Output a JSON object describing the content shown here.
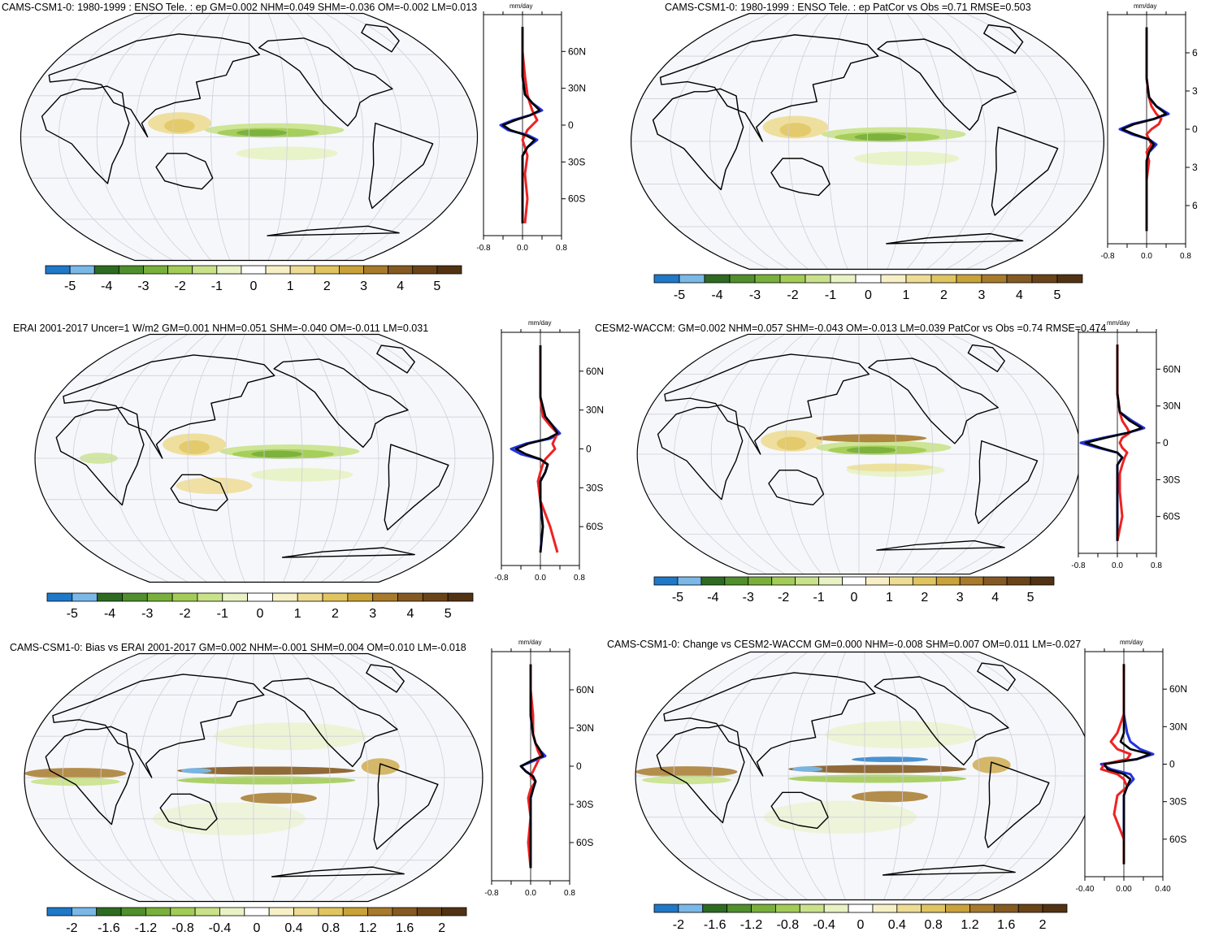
{
  "units": "mm/day",
  "panels": [
    {
      "id": "p1",
      "title": "CAMS-CSM1-0: 1980-1999 : ENSO Tele. : ep GM=0.002 NHM=0.049 SHM=-0.036 OM=-0.002 LM=0.013",
      "lat_labels": [
        "60N",
        "30N",
        "0",
        "30S",
        "60S"
      ],
      "x_ticks": [
        "-0.8",
        "0.0",
        "0.8"
      ],
      "colorbar_labels": [
        "-5",
        "-4",
        "-3",
        "-2",
        "-1",
        "0",
        "1",
        "2",
        "3",
        "4",
        "5"
      ]
    },
    {
      "id": "p2",
      "title": "CAMS-CSM1-0: 1980-1999 : ENSO Tele. : ep PatCor vs Obs =0.71 RMSE=0.503",
      "lat_labels": [
        "6",
        "3",
        "0",
        "3",
        "6"
      ],
      "x_ticks": [
        "-0.8",
        "0.0",
        "0.8"
      ],
      "colorbar_labels": [
        "-5",
        "-4",
        "-3",
        "-2",
        "-1",
        "0",
        "1",
        "2",
        "3",
        "4",
        "5"
      ]
    },
    {
      "id": "p3",
      "title": "ERAI 2001-2017 Uncer=1 W/m2 GM=0.001 NHM=0.051 SHM=-0.040 OM=-0.011 LM=0.031",
      "lat_labels": [
        "60N",
        "30N",
        "0",
        "30S",
        "60S"
      ],
      "x_ticks": [
        "-0.8",
        "0.0",
        "0.8"
      ],
      "colorbar_labels": [
        "-5",
        "-4",
        "-3",
        "-2",
        "-1",
        "0",
        "1",
        "2",
        "3",
        "4",
        "5"
      ]
    },
    {
      "id": "p4",
      "title": "CESM2-WACCM: GM=0.002 NHM=0.057 SHM=-0.043 OM=-0.013 LM=0.039 PatCor vs Obs =0.74 RMSE=0.474",
      "lat_labels": [
        "60N",
        "30N",
        "0",
        "30S",
        "60S"
      ],
      "x_ticks": [
        "-0.8",
        "0.0",
        "0.8"
      ],
      "colorbar_labels": [
        "-5",
        "-4",
        "-3",
        "-2",
        "-1",
        "0",
        "1",
        "2",
        "3",
        "4",
        "5"
      ]
    },
    {
      "id": "p5",
      "title": "CAMS-CSM1-0: Bias vs ERAI 2001-2017 GM=0.002 NHM=-0.001 SHM=0.004 OM=0.010 LM=-0.018",
      "lat_labels": [
        "60N",
        "30N",
        "0",
        "30S",
        "60S"
      ],
      "x_ticks": [
        "-0.8",
        "0.0",
        "0.8"
      ],
      "colorbar_labels": [
        "-2",
        "-1.6",
        "-1.2",
        "-0.8",
        "-0.4",
        "0",
        "0.4",
        "0.8",
        "1.2",
        "1.6",
        "2"
      ]
    },
    {
      "id": "p6",
      "title": "CAMS-CSM1-0: Change vs CESM2-WACCM GM=0.000 NHM=-0.008 SHM=0.007 OM=0.011 LM=-0.027",
      "lat_labels": [
        "60N",
        "30N",
        "0",
        "30S",
        "60S"
      ],
      "x_ticks": [
        "-0.40",
        "0.00",
        "0.40"
      ],
      "colorbar_labels": [
        "-2",
        "-1.6",
        "-1.2",
        "-0.8",
        "-0.4",
        "0",
        "0.4",
        "0.8",
        "1.2",
        "1.6",
        "2"
      ]
    }
  ],
  "colorbar_colors": [
    "#1f78c8",
    "#7ab8e8",
    "#2e6b22",
    "#4f8f2c",
    "#79b03c",
    "#a3cc57",
    "#c9e28a",
    "#e8f2c4",
    "#ffffff",
    "#f7f0c6",
    "#eedc94",
    "#e0c460",
    "#c9a23a",
    "#a77a2c",
    "#855a22",
    "#6a4418",
    "#523212"
  ],
  "chart_data": [
    {
      "type": "heatmap",
      "title": "CAMS-CSM1-0: 1980-1999 : ENSO Tele. : ep GM=0.002 NHM=0.049 SHM=-0.036 OM=-0.002 LM=0.013",
      "colorbar_ticks": [
        -5,
        -4,
        -3,
        -2,
        -1,
        0,
        1,
        2,
        3,
        4,
        5
      ],
      "profile": {
        "xlabel": "mm/day",
        "xlim": [
          -0.8,
          0.8
        ],
        "ylim": [
          -90,
          90
        ],
        "ylabels": [
          "60N",
          "30N",
          "0",
          "30S",
          "60S"
        ],
        "lat": [
          80,
          60,
          40,
          25,
          18,
          12,
          8,
          4,
          0,
          -4,
          -8,
          -12,
          -18,
          -25,
          -40,
          -60,
          -80
        ],
        "series": [
          {
            "color": "#2233dd",
            "values": [
              0,
              0,
              0,
              0.05,
              0.2,
              0.4,
              0.15,
              -0.2,
              -0.45,
              -0.3,
              0.1,
              0.3,
              0.1,
              0,
              0,
              0,
              0
            ]
          },
          {
            "color": "#ee2222",
            "values": [
              0,
              0,
              0.05,
              0.1,
              0.15,
              0.2,
              0.25,
              0.3,
              0.2,
              0.1,
              0.05,
              0.0,
              0.05,
              0.1,
              0.05,
              0.1,
              0.05
            ]
          },
          {
            "color": "#000000",
            "values": [
              0,
              0,
              0,
              0.05,
              0.2,
              0.35,
              0.15,
              -0.15,
              -0.4,
              -0.25,
              0.05,
              0.25,
              0.1,
              0,
              0,
              0,
              0
            ]
          }
        ]
      }
    },
    {
      "type": "heatmap",
      "title": "CAMS-CSM1-0: 1980-1999 : ENSO Tele. : ep PatCor vs Obs =0.71 RMSE=0.503",
      "colorbar_ticks": [
        -5,
        -4,
        -3,
        -2,
        -1,
        0,
        1,
        2,
        3,
        4,
        5
      ],
      "profile": {
        "xlabel": "mm/day",
        "xlim": [
          -0.8,
          0.8
        ],
        "ylim": [
          -90,
          90
        ],
        "ylabels": [
          "6",
          "3",
          "0",
          "3",
          "6"
        ],
        "lat": [
          80,
          60,
          40,
          25,
          18,
          12,
          8,
          4,
          0,
          -4,
          -8,
          -12,
          -18,
          -25,
          -40,
          -60,
          -80
        ],
        "series": [
          {
            "color": "#2233dd",
            "values": [
              0,
              0,
              0,
              0.05,
              0.2,
              0.45,
              0.15,
              -0.3,
              -0.55,
              -0.3,
              0.05,
              0.2,
              0.05,
              0,
              0,
              0,
              0
            ]
          },
          {
            "color": "#ee2222",
            "values": [
              0,
              0,
              0,
              0.05,
              0.1,
              0.2,
              0.3,
              0.25,
              0.1,
              0.0,
              0.05,
              0.1,
              0.0,
              0.05,
              0.0,
              0.0,
              0.0
            ]
          },
          {
            "color": "#000000",
            "values": [
              0,
              0,
              0,
              0.05,
              0.2,
              0.4,
              0.15,
              -0.25,
              -0.5,
              -0.25,
              0.05,
              0.15,
              0.05,
              0,
              0,
              0,
              0
            ]
          }
        ]
      }
    },
    {
      "type": "heatmap",
      "title": "ERAI 2001-2017 Uncer=1 W/m2 GM=0.001 NHM=0.051 SHM=-0.040 OM=-0.011 LM=0.031",
      "colorbar_ticks": [
        -5,
        -4,
        -3,
        -2,
        -1,
        0,
        1,
        2,
        3,
        4,
        5
      ],
      "profile": {
        "xlabel": "mm/day",
        "xlim": [
          -0.8,
          0.8
        ],
        "ylim": [
          -90,
          90
        ],
        "ylabels": [
          "60N",
          "30N",
          "0",
          "30S",
          "60S"
        ],
        "lat": [
          80,
          60,
          40,
          25,
          18,
          12,
          8,
          4,
          0,
          -4,
          -8,
          -12,
          -18,
          -25,
          -40,
          -60,
          -80
        ],
        "series": [
          {
            "color": "#2233dd",
            "values": [
              0,
              0,
              0,
              0.1,
              0.25,
              0.4,
              0.2,
              -0.3,
              -0.6,
              -0.4,
              0.0,
              0.15,
              0.1,
              0.0,
              0.0,
              0.05,
              0.0
            ]
          },
          {
            "color": "#ee2222",
            "values": [
              0,
              0,
              0,
              0.05,
              0.2,
              0.35,
              0.3,
              0.25,
              0.3,
              0.2,
              0.1,
              0.05,
              0.0,
              -0.05,
              0.0,
              0.2,
              0.35
            ]
          },
          {
            "color": "#000000",
            "values": [
              0,
              0,
              0,
              0.1,
              0.25,
              0.35,
              0.15,
              -0.25,
              -0.5,
              -0.3,
              0.0,
              0.15,
              0.1,
              0.0,
              0.0,
              0.05,
              0.0
            ]
          }
        ]
      }
    },
    {
      "type": "heatmap",
      "title": "CESM2-WACCM: GM=0.002 NHM=0.057 SHM=-0.043 OM=-0.013 LM=0.039 PatCor vs Obs =0.74 RMSE=0.474",
      "colorbar_ticks": [
        -5,
        -4,
        -3,
        -2,
        -1,
        0,
        1,
        2,
        3,
        4,
        5
      ],
      "profile": {
        "xlabel": "mm/day",
        "xlim": [
          -0.8,
          0.8
        ],
        "ylim": [
          -90,
          90
        ],
        "ylabels": [
          "60N",
          "30N",
          "0",
          "30S",
          "60S"
        ],
        "lat": [
          80,
          60,
          40,
          25,
          18,
          12,
          8,
          4,
          0,
          -4,
          -8,
          -12,
          -18,
          -25,
          -40,
          -60,
          -80
        ],
        "series": [
          {
            "color": "#2233dd",
            "values": [
              0,
              0,
              0,
              0.05,
              0.3,
              0.55,
              0.2,
              -0.3,
              -0.75,
              -0.4,
              0.0,
              0.1,
              0.0,
              0.0,
              0.0,
              0.0,
              0.0
            ]
          },
          {
            "color": "#ee2222",
            "values": [
              0,
              0,
              0,
              0.05,
              0.1,
              0.2,
              0.25,
              0.1,
              0.05,
              0.1,
              0.2,
              0.15,
              0.1,
              0.05,
              0.05,
              0.1,
              0.0
            ]
          },
          {
            "color": "#000000",
            "values": [
              0,
              0,
              0,
              0.05,
              0.25,
              0.5,
              0.2,
              -0.25,
              -0.65,
              -0.35,
              0.0,
              0.1,
              0.0,
              0.0,
              0.0,
              0.0,
              0.0
            ]
          }
        ]
      }
    },
    {
      "type": "heatmap",
      "title": "CAMS-CSM1-0: Bias vs ERAI 2001-2017 GM=0.002 NHM=-0.001 SHM=0.004 OM=0.010 LM=-0.018",
      "colorbar_ticks": [
        -2,
        -1.6,
        -1.2,
        -0.8,
        -0.4,
        0,
        0.4,
        0.8,
        1.2,
        1.6,
        2
      ],
      "profile": {
        "xlabel": "mm/day",
        "xlim": [
          -0.8,
          0.8
        ],
        "ylim": [
          -90,
          90
        ],
        "ylabels": [
          "60N",
          "30N",
          "0",
          "30S",
          "60S"
        ],
        "lat": [
          80,
          60,
          40,
          25,
          18,
          12,
          8,
          4,
          0,
          -4,
          -8,
          -12,
          -18,
          -25,
          -40,
          -60,
          -80
        ],
        "series": [
          {
            "color": "#2233dd",
            "values": [
              0,
              0,
              0,
              0.05,
              0.1,
              0.2,
              0.3,
              0.05,
              -0.2,
              -0.1,
              0.05,
              0.1,
              0.05,
              0,
              0,
              0,
              0
            ]
          },
          {
            "color": "#ee2222",
            "values": [
              0,
              0,
              0.05,
              0.05,
              0.1,
              0.15,
              0.2,
              0.15,
              0.1,
              0.05,
              0.0,
              0.1,
              0.0,
              -0.05,
              0.0,
              -0.05,
              0.0
            ]
          },
          {
            "color": "#000000",
            "values": [
              0,
              0,
              0,
              0.05,
              0.1,
              0.2,
              0.25,
              0.0,
              -0.2,
              -0.1,
              0.05,
              0.1,
              0.05,
              0,
              0,
              0,
              0
            ]
          }
        ]
      }
    },
    {
      "type": "heatmap",
      "title": "CAMS-CSM1-0: Change vs CESM2-WACCM GM=0.000 NHM=-0.008 SHM=0.007 OM=0.011 LM=-0.027",
      "colorbar_ticks": [
        -2,
        -1.6,
        -1.2,
        -0.8,
        -0.4,
        0,
        0.4,
        0.8,
        1.2,
        1.6,
        2
      ],
      "profile": {
        "xlabel": "mm/day",
        "xlim": [
          -0.6,
          0.6
        ],
        "ylim": [
          -90,
          90
        ],
        "ylabels": [
          "60N",
          "30N",
          "0",
          "30S",
          "60S"
        ],
        "lat": [
          80,
          60,
          40,
          25,
          18,
          12,
          8,
          4,
          0,
          -4,
          -8,
          -12,
          -18,
          -25,
          -40,
          -60,
          -80
        ],
        "series": [
          {
            "color": "#2233dd",
            "values": [
              0,
              0,
              0,
              0.05,
              0.1,
              0.25,
              0.45,
              0.2,
              -0.35,
              -0.2,
              0.1,
              0.15,
              0.05,
              0,
              0,
              0,
              0
            ]
          },
          {
            "color": "#ee2222",
            "values": [
              0,
              0,
              0,
              -0.1,
              -0.2,
              -0.1,
              0.1,
              0.05,
              -0.3,
              -0.35,
              -0.1,
              0.0,
              0.05,
              -0.1,
              -0.15,
              0.0,
              0.0
            ]
          },
          {
            "color": "#000000",
            "values": [
              0,
              0,
              0,
              0.0,
              -0.05,
              0.1,
              0.4,
              0.2,
              -0.3,
              -0.25,
              0.0,
              0.1,
              0.05,
              0,
              0,
              0,
              0
            ]
          }
        ]
      }
    }
  ]
}
